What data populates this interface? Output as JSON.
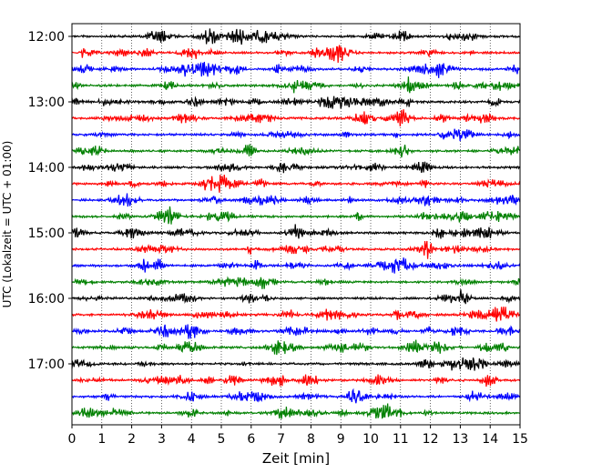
{
  "chart_data": {
    "type": "line",
    "title": "",
    "xlabel": "Zeit  [min]",
    "ylabel": "UTC (Lokalzeit = UTC + 01:00)",
    "xlim": [
      0,
      15
    ],
    "x_ticks": [
      "0",
      "1",
      "2",
      "3",
      "4",
      "5",
      "6",
      "7",
      "8",
      "9",
      "10",
      "11",
      "12",
      "13",
      "14",
      "15"
    ],
    "y_tick_labels": [
      "12:00",
      "13:00",
      "14:00",
      "15:00",
      "16:00",
      "17:00"
    ],
    "grid": "vertical dotted at each minute",
    "row_colors": [
      "#000000",
      "#ff0000",
      "#0000ff",
      "#008000"
    ],
    "rows": [
      {
        "time": "12:00",
        "color": "#000000"
      },
      {
        "time": "12:15",
        "color": "#ff0000"
      },
      {
        "time": "12:30",
        "color": "#0000ff"
      },
      {
        "time": "12:45",
        "color": "#008000"
      },
      {
        "time": "13:00",
        "color": "#000000"
      },
      {
        "time": "13:15",
        "color": "#ff0000"
      },
      {
        "time": "13:30",
        "color": "#0000ff"
      },
      {
        "time": "13:45",
        "color": "#008000"
      },
      {
        "time": "14:00",
        "color": "#000000"
      },
      {
        "time": "14:15",
        "color": "#ff0000"
      },
      {
        "time": "14:30",
        "color": "#0000ff"
      },
      {
        "time": "14:45",
        "color": "#008000"
      },
      {
        "time": "15:00",
        "color": "#000000"
      },
      {
        "time": "15:15",
        "color": "#ff0000"
      },
      {
        "time": "15:30",
        "color": "#0000ff"
      },
      {
        "time": "15:45",
        "color": "#008000"
      },
      {
        "time": "16:00",
        "color": "#000000"
      },
      {
        "time": "16:15",
        "color": "#ff0000"
      },
      {
        "time": "16:30",
        "color": "#0000ff"
      },
      {
        "time": "16:45",
        "color": "#008000"
      },
      {
        "time": "17:00",
        "color": "#000000"
      },
      {
        "time": "17:15",
        "color": "#ff0000"
      },
      {
        "time": "17:30",
        "color": "#0000ff"
      },
      {
        "time": "17:45",
        "color": "#008000"
      }
    ]
  }
}
